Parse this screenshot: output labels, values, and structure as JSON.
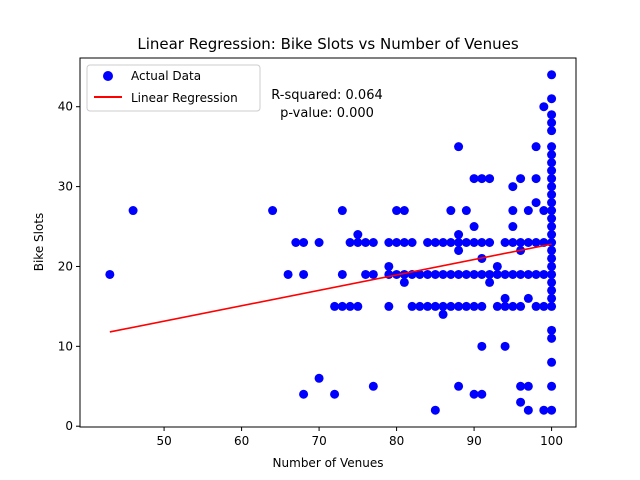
{
  "chart_data": {
    "type": "scatter",
    "title": "Linear Regression: Bike Slots vs Number of Venues",
    "xlabel": "Number of Venues",
    "ylabel": "Bike Slots",
    "xlim": [
      39.15,
      103.15
    ],
    "ylim": [
      -0.1,
      46.1
    ],
    "xticks": [
      50,
      60,
      70,
      80,
      90,
      100
    ],
    "yticks": [
      0,
      10,
      20,
      30,
      40
    ],
    "grid": false,
    "legend_position": "top-left",
    "annotation": {
      "line1": "R-squared: 0.064",
      "line2": "p-value: 0.000"
    },
    "colors": {
      "points": "#0000ff",
      "regression": "#ff0000"
    },
    "series": [
      {
        "name": "Actual Data",
        "kind": "scatter",
        "points": [
          [
            43,
            19
          ],
          [
            46,
            27
          ],
          [
            64,
            27
          ],
          [
            66,
            19
          ],
          [
            67,
            23
          ],
          [
            68,
            23
          ],
          [
            68,
            19
          ],
          [
            68,
            4
          ],
          [
            70,
            23
          ],
          [
            70,
            6
          ],
          [
            72,
            15
          ],
          [
            72,
            4
          ],
          [
            73,
            27
          ],
          [
            73,
            19
          ],
          [
            73,
            15
          ],
          [
            74,
            23
          ],
          [
            74,
            15
          ],
          [
            75,
            24
          ],
          [
            75,
            23
          ],
          [
            75,
            15
          ],
          [
            76,
            23
          ],
          [
            76,
            19
          ],
          [
            77,
            23
          ],
          [
            77,
            19
          ],
          [
            77,
            5
          ],
          [
            79,
            23
          ],
          [
            79,
            20
          ],
          [
            79,
            19
          ],
          [
            79,
            15
          ],
          [
            80,
            27
          ],
          [
            80,
            23
          ],
          [
            80,
            19
          ],
          [
            81,
            27
          ],
          [
            81,
            23
          ],
          [
            81,
            19
          ],
          [
            81,
            18
          ],
          [
            82,
            23
          ],
          [
            82,
            19
          ],
          [
            82,
            15
          ],
          [
            83,
            19
          ],
          [
            83,
            15
          ],
          [
            84,
            23
          ],
          [
            84,
            19
          ],
          [
            84,
            15
          ],
          [
            85,
            23
          ],
          [
            85,
            19
          ],
          [
            85,
            15
          ],
          [
            85,
            2
          ],
          [
            86,
            23
          ],
          [
            86,
            19
          ],
          [
            86,
            15
          ],
          [
            86,
            14
          ],
          [
            87,
            27
          ],
          [
            87,
            23
          ],
          [
            87,
            19
          ],
          [
            87,
            15
          ],
          [
            88,
            35
          ],
          [
            88,
            24
          ],
          [
            88,
            23
          ],
          [
            88,
            22
          ],
          [
            88,
            19
          ],
          [
            88,
            15
          ],
          [
            88,
            5
          ],
          [
            89,
            27
          ],
          [
            89,
            23
          ],
          [
            89,
            19
          ],
          [
            89,
            15
          ],
          [
            90,
            31
          ],
          [
            90,
            25
          ],
          [
            90,
            23
          ],
          [
            90,
            19
          ],
          [
            90,
            15
          ],
          [
            90,
            4
          ],
          [
            91,
            31
          ],
          [
            91,
            23
          ],
          [
            91,
            21
          ],
          [
            91,
            19
          ],
          [
            91,
            15
          ],
          [
            91,
            10
          ],
          [
            91,
            4
          ],
          [
            92,
            31
          ],
          [
            92,
            23
          ],
          [
            92,
            19
          ],
          [
            92,
            18
          ],
          [
            93,
            20
          ],
          [
            93,
            19
          ],
          [
            93,
            15
          ],
          [
            94,
            23
          ],
          [
            94,
            19
          ],
          [
            94,
            16
          ],
          [
            94,
            15
          ],
          [
            94,
            10
          ],
          [
            95,
            30
          ],
          [
            95,
            27
          ],
          [
            95,
            25
          ],
          [
            95,
            23
          ],
          [
            95,
            19
          ],
          [
            95,
            15
          ],
          [
            96,
            31
          ],
          [
            96,
            23
          ],
          [
            96,
            22
          ],
          [
            96,
            19
          ],
          [
            96,
            15
          ],
          [
            96,
            5
          ],
          [
            96,
            3
          ],
          [
            97,
            27
          ],
          [
            97,
            23
          ],
          [
            97,
            19
          ],
          [
            97,
            16
          ],
          [
            97,
            5
          ],
          [
            97,
            2
          ],
          [
            98,
            35
          ],
          [
            98,
            31
          ],
          [
            98,
            28
          ],
          [
            98,
            23
          ],
          [
            98,
            19
          ],
          [
            98,
            15
          ],
          [
            99,
            40
          ],
          [
            99,
            27
          ],
          [
            99,
            23
          ],
          [
            99,
            19
          ],
          [
            99,
            15
          ],
          [
            99,
            2
          ],
          [
            100,
            44
          ],
          [
            100,
            41
          ],
          [
            100,
            39
          ],
          [
            100,
            38
          ],
          [
            100,
            37
          ],
          [
            100,
            35
          ],
          [
            100,
            34
          ],
          [
            100,
            33
          ],
          [
            100,
            32
          ],
          [
            100,
            31
          ],
          [
            100,
            30
          ],
          [
            100,
            29
          ],
          [
            100,
            28
          ],
          [
            100,
            27
          ],
          [
            100,
            26
          ],
          [
            100,
            25
          ],
          [
            100,
            24
          ],
          [
            100,
            23
          ],
          [
            100,
            22
          ],
          [
            100,
            21
          ],
          [
            100,
            20
          ],
          [
            100,
            19
          ],
          [
            100,
            18
          ],
          [
            100,
            17
          ],
          [
            100,
            16
          ],
          [
            100,
            15
          ],
          [
            100,
            12
          ],
          [
            100,
            11
          ],
          [
            100,
            8
          ],
          [
            100,
            5
          ],
          [
            100,
            2
          ]
        ]
      },
      {
        "name": "Linear Regression",
        "kind": "line",
        "points": [
          [
            43,
            11.8
          ],
          [
            100,
            22.8
          ]
        ]
      }
    ]
  }
}
